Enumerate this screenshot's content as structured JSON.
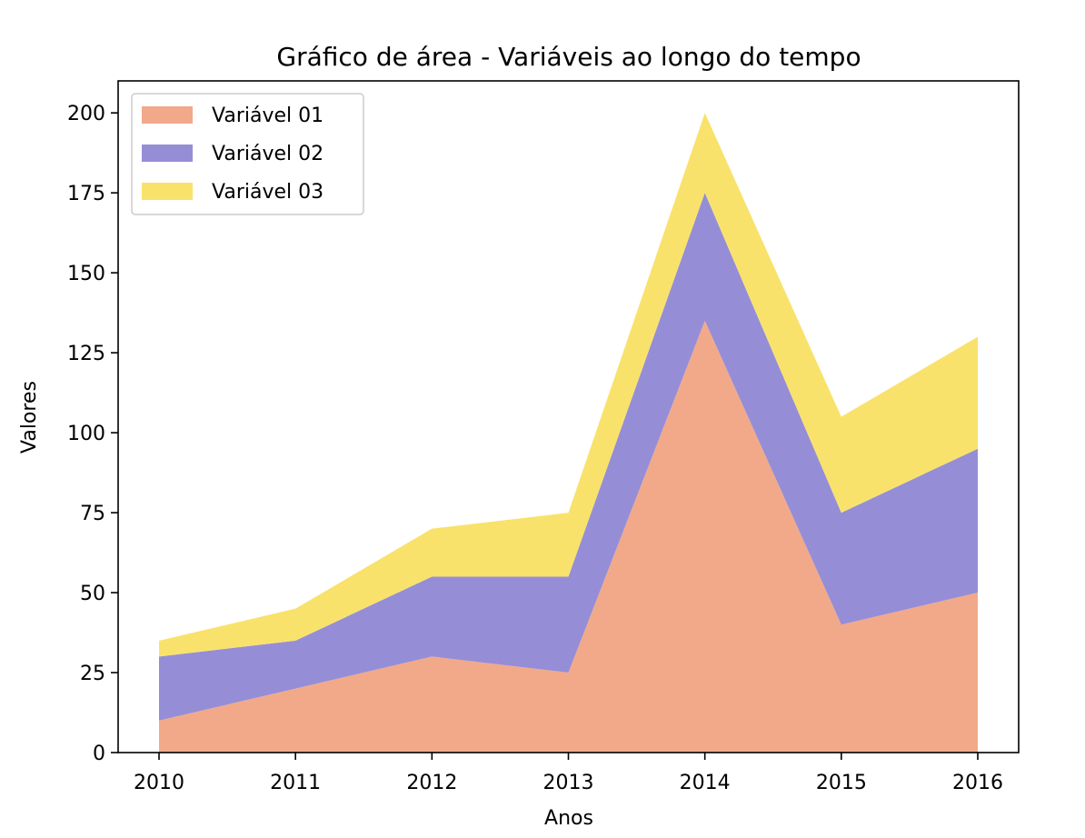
{
  "chart_data": {
    "type": "area",
    "stacked": true,
    "title": "Gráfico de área - Variáveis ao longo do tempo",
    "xlabel": "Anos",
    "ylabel": "Valores",
    "x": [
      2010,
      2011,
      2012,
      2013,
      2014,
      2015,
      2016
    ],
    "x_tick_labels": [
      "2010",
      "2011",
      "2012",
      "2013",
      "2014",
      "2015",
      "2016"
    ],
    "ylim": [
      0,
      210
    ],
    "y_ticks": [
      0,
      25,
      50,
      75,
      100,
      125,
      150,
      175,
      200
    ],
    "y_tick_labels": [
      "0",
      "25",
      "50",
      "75",
      "100",
      "125",
      "150",
      "175",
      "200"
    ],
    "grid": false,
    "legend_position": "top-left",
    "series": [
      {
        "name": "Variável 01",
        "color": "#f2a98a",
        "values": [
          10,
          20,
          30,
          25,
          135,
          40,
          50
        ]
      },
      {
        "name": "Variável 02",
        "color": "#958ed6",
        "values": [
          20,
          15,
          25,
          30,
          40,
          35,
          45
        ]
      },
      {
        "name": "Variável 03",
        "color": "#f9e26c",
        "values": [
          5,
          10,
          15,
          20,
          25,
          30,
          35
        ]
      }
    ]
  }
}
